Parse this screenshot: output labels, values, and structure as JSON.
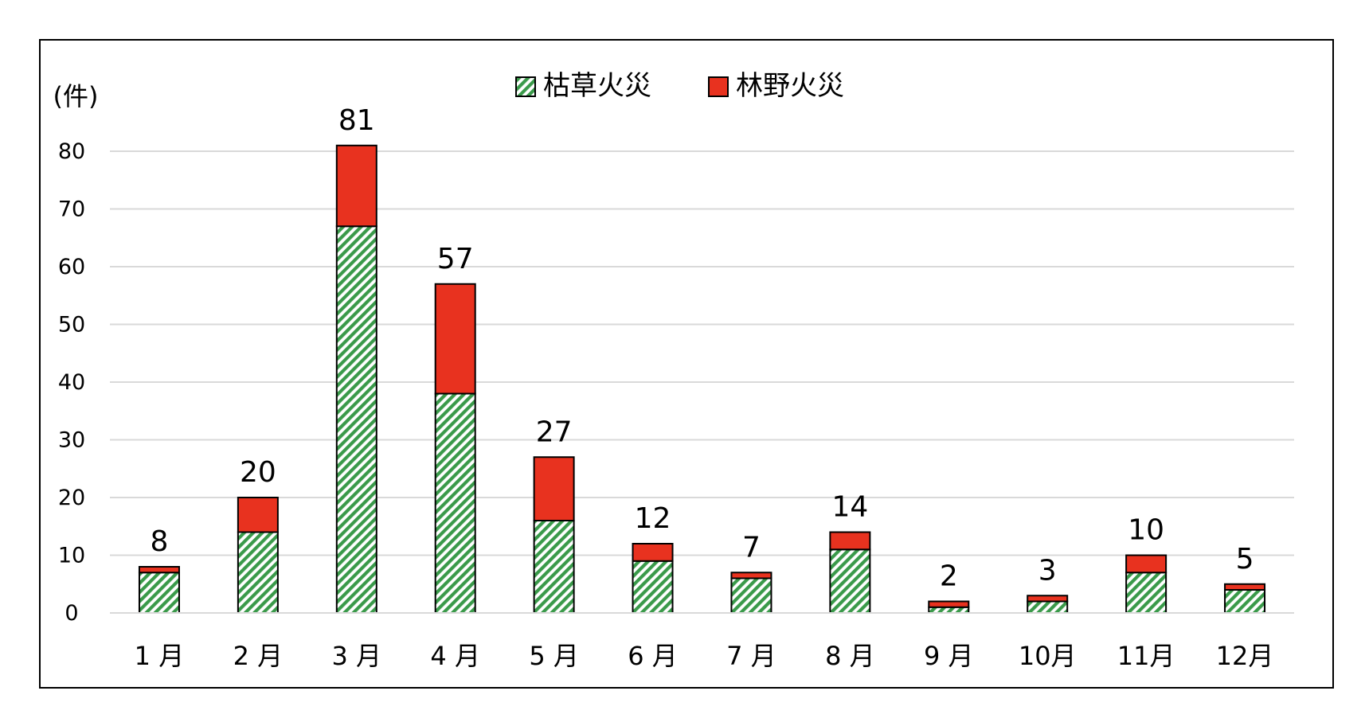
{
  "chart_data": {
    "type": "bar",
    "stacked": true,
    "title": "",
    "xlabel": "",
    "ylabel": "(件)",
    "ylim": [
      0,
      80
    ],
    "yticks": [
      0,
      10,
      20,
      30,
      40,
      50,
      60,
      70,
      80
    ],
    "grid": true,
    "legend_position": "top-center",
    "categories": [
      "1 月",
      "2 月",
      "3 月",
      "4 月",
      "5 月",
      "6 月",
      "7 月",
      "8 月",
      "9 月",
      "10月",
      "11月",
      "12月"
    ],
    "series": [
      {
        "name": "枯草火災",
        "values": [
          7,
          14,
          67,
          38,
          16,
          9,
          6,
          11,
          1,
          2,
          7,
          4
        ],
        "color": "#3a9a4a",
        "pattern": "diagonal-hatch"
      },
      {
        "name": "林野火災",
        "values": [
          1,
          6,
          14,
          19,
          11,
          3,
          1,
          3,
          1,
          1,
          3,
          1
        ],
        "color": "#e8321f"
      }
    ],
    "totals": [
      8,
      20,
      81,
      57,
      27,
      12,
      7,
      14,
      2,
      3,
      10,
      5
    ]
  }
}
